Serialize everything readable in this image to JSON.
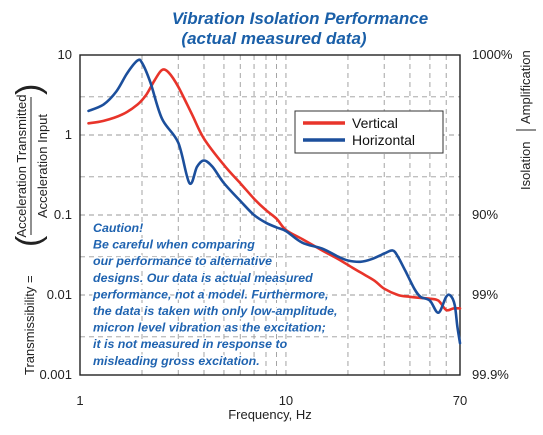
{
  "chart_data": {
    "type": "line",
    "title_line1": "Vibration Isolation Performance",
    "title_line2": "(actual measured data)",
    "xlabel": "Frequency, Hz",
    "ylabel_prefix": "Transmissibility =",
    "ylabel_numerator": "Acceleration Transmitted",
    "ylabel_denominator": "Acceleration Input",
    "right_label_lower": "Isolation",
    "right_label_upper": "Amplification",
    "x_scale": "log",
    "y_scale": "log",
    "xlim": [
      1,
      70
    ],
    "ylim": [
      0.001,
      10
    ],
    "x_ticks": [
      {
        "value": 1,
        "label": "1"
      },
      {
        "value": 10,
        "label": "10"
      },
      {
        "value": 70,
        "label": "70"
      }
    ],
    "y_ticks": [
      {
        "value": 10,
        "label": "10"
      },
      {
        "value": 1,
        "label": "1"
      },
      {
        "value": 0.1,
        "label": "0.1"
      },
      {
        "value": 0.01,
        "label": "0.01"
      },
      {
        "value": 0.001,
        "label": "0.001"
      }
    ],
    "right_ticks": [
      {
        "value": 10,
        "label": "1000%"
      },
      {
        "value": 0.1,
        "label": "90%"
      },
      {
        "value": 0.01,
        "label": "99%"
      },
      {
        "value": 0.001,
        "label": "99.9%"
      }
    ],
    "grid": true,
    "legend_position": "top-right",
    "series": [
      {
        "name": "Vertical",
        "color": "#e8342a",
        "x": [
          1.1,
          1.3,
          1.6,
          1.9,
          2.1,
          2.3,
          2.5,
          2.7,
          3.0,
          3.5,
          4.0,
          5.0,
          6.0,
          7.0,
          8.0,
          9.0,
          10.0,
          12.0,
          15.0,
          18.0,
          21.0,
          24.0,
          27.0,
          30.0,
          35.0,
          40.0,
          45.0,
          50.0,
          55.0,
          60.0,
          65.0,
          70.0
        ],
        "y": [
          1.4,
          1.5,
          1.8,
          2.4,
          3.2,
          4.8,
          6.5,
          6.0,
          4.0,
          1.8,
          0.9,
          0.42,
          0.25,
          0.16,
          0.115,
          0.09,
          0.065,
          0.05,
          0.036,
          0.028,
          0.022,
          0.018,
          0.015,
          0.012,
          0.01,
          0.0095,
          0.0092,
          0.009,
          0.0085,
          0.0065,
          0.0068,
          0.0068
        ]
      },
      {
        "name": "Horizontal",
        "color": "#1c4f9c",
        "x": [
          1.1,
          1.3,
          1.5,
          1.7,
          1.9,
          2.0,
          2.2,
          2.5,
          3.0,
          3.4,
          3.7,
          4.0,
          4.4,
          5.0,
          6.0,
          7.0,
          8.0,
          9.0,
          10.0,
          12.0,
          15.0,
          18.0,
          20.0,
          23.0,
          26.0,
          30.0,
          33.0,
          35.0,
          38.0,
          42.0,
          45.0,
          50.0,
          55.0,
          60.0,
          63.0,
          66.0,
          68.0,
          70.0
        ],
        "y": [
          2.0,
          2.4,
          3.5,
          6.0,
          8.5,
          8.0,
          4.5,
          1.6,
          0.8,
          0.25,
          0.4,
          0.48,
          0.4,
          0.25,
          0.15,
          0.1,
          0.08,
          0.07,
          0.063,
          0.045,
          0.038,
          0.03,
          0.027,
          0.026,
          0.028,
          0.033,
          0.036,
          0.03,
          0.02,
          0.012,
          0.0095,
          0.0085,
          0.006,
          0.0095,
          0.0098,
          0.0075,
          0.004,
          0.0025
        ]
      }
    ],
    "annotation_lines": [
      "Caution!",
      "Be careful when comparing",
      "our performance to alternative",
      "designs. Our data is actual measured",
      "performance, not a model. Furthermore,",
      "the data is taken with only low-amplitude,",
      "micron level vibration as the excitation;",
      "it is not measured in response to",
      "misleading gross excitation."
    ]
  }
}
